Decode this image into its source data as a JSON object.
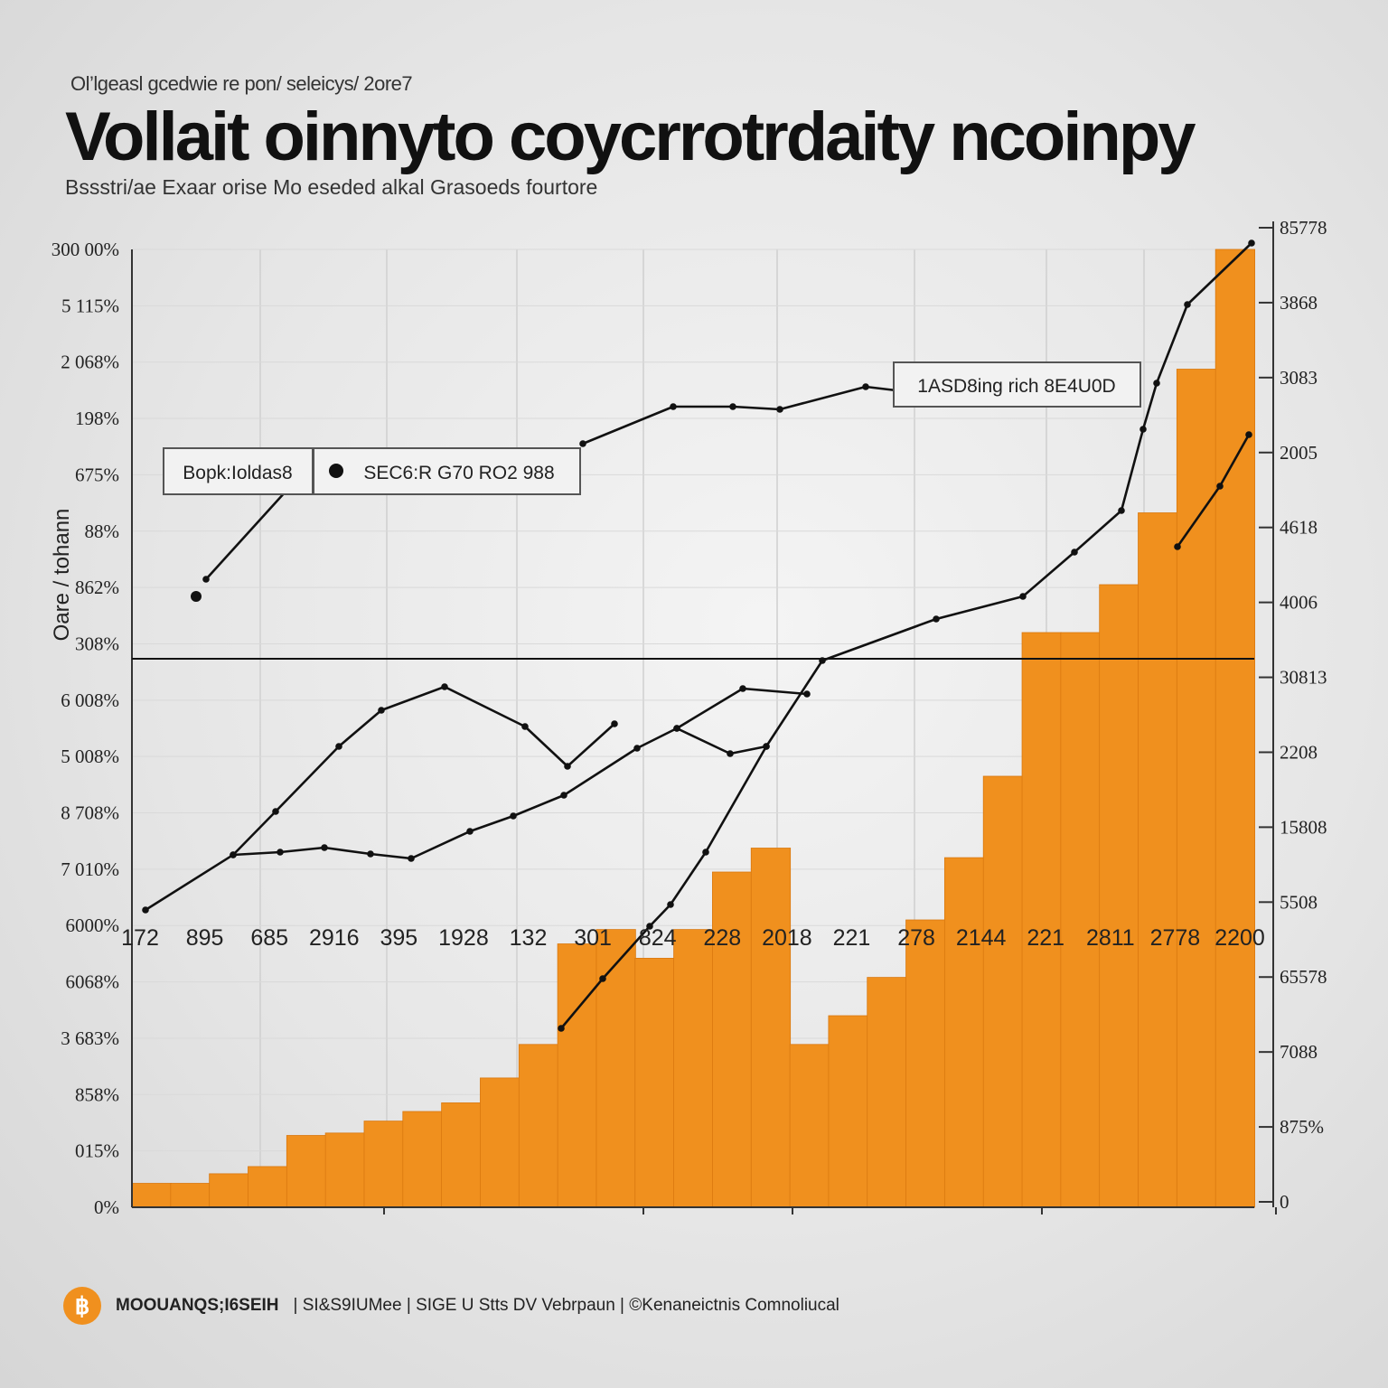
{
  "header": {
    "kicker": "Ol’lgeasl gcedwie re pon/ seleicys/ 2ore7",
    "title": "Vollait oinnyto coycrrotrdaity ncoinpy",
    "subtitle": "Bssstri/ae Exaar orise Mo eseded alkal Grasoeds fourtore"
  },
  "footer": {
    "icon": "bitcoin-icon",
    "brand": "MOOUANQS;I6SEIH",
    "text": "| SI&S9IUMee |  SIGE U Stts DV Vebrpaun |  ©Kenaneictnis Comnoliucal"
  },
  "colors": {
    "bar": "#f0901e",
    "bar_edge": "#d9780f",
    "line": "#111111"
  },
  "chart_data": {
    "type": "bar",
    "ylabel": "Oare / tohann",
    "grid": true,
    "y_left_ticks": [
      "300 00%",
      "5 115%",
      "2 068%",
      "198%",
      "675%",
      "88%",
      "862%",
      "308%",
      "6 008%",
      "5 008%",
      "8 708%",
      "7 010%",
      "6000%",
      "6068%",
      "3 683%",
      "858%",
      "015%",
      "0%"
    ],
    "y_right_ticks": [
      "85778",
      "3868",
      "3083",
      "2005",
      "4618",
      "4006",
      "30813",
      "2208",
      "15808",
      "5508",
      "65578",
      "7088",
      "875%",
      "0"
    ],
    "x_tick_labels": [
      "172",
      "895",
      "685",
      "2916",
      "395",
      "1928",
      "132",
      "301",
      "824",
      "228",
      "2018",
      "221",
      "278",
      "2144",
      "221",
      "2811",
      "2778",
      "2200"
    ],
    "x_tick_marks": [
      425,
      712,
      877,
      1153,
      1412
    ],
    "values": [
      0.5,
      0.5,
      0.7,
      0.85,
      1.5,
      1.55,
      1.8,
      2.0,
      2.18,
      2.7,
      3.4,
      5.5,
      5.8,
      5.2,
      5.8,
      7.0,
      7.5,
      3.4,
      4.0,
      4.8,
      6.0,
      7.3,
      9.0,
      12.0,
      12.0,
      13.0,
      14.5,
      17.5,
      20.0
    ],
    "ylim": [
      0,
      20
    ],
    "series": [
      {
        "points": [
          [
            161,
            1007
          ],
          [
            258,
            946
          ],
          [
            305,
            898
          ],
          [
            375,
            826
          ],
          [
            422,
            786
          ],
          [
            492,
            760
          ],
          [
            581,
            804
          ],
          [
            628,
            848
          ],
          [
            680,
            801
          ]
        ]
      },
      {
        "points": [
          [
            258,
            946
          ],
          [
            310,
            943
          ],
          [
            359,
            938
          ],
          [
            410,
            945
          ],
          [
            455,
            950
          ],
          [
            520,
            920
          ],
          [
            568,
            903
          ],
          [
            624,
            880
          ],
          [
            705,
            828
          ],
          [
            749,
            806
          ],
          [
            822,
            762
          ],
          [
            893,
            768
          ]
        ]
      },
      {
        "points": [
          [
            749,
            806
          ],
          [
            808,
            834
          ],
          [
            848,
            826
          ],
          [
            910,
            731
          ],
          [
            1036,
            685
          ],
          [
            1132,
            660
          ],
          [
            1189,
            611
          ],
          [
            1241,
            565
          ],
          [
            1265,
            475
          ],
          [
            1280,
            424
          ],
          [
            1314,
            337
          ],
          [
            1385,
            269
          ]
        ]
      },
      {
        "points": [
          [
            621,
            1138
          ],
          [
            667,
            1083
          ],
          [
            719,
            1025
          ],
          [
            742,
            1001
          ],
          [
            781,
            943
          ],
          [
            848,
            826
          ]
        ]
      },
      {
        "points": [
          [
            645,
            491
          ],
          [
            745,
            450
          ],
          [
            811,
            450
          ],
          [
            863,
            453
          ],
          [
            958,
            428
          ],
          [
            1000,
            433
          ]
        ]
      },
      {
        "points": [
          [
            1303,
            605
          ],
          [
            1350,
            538
          ],
          [
            1382,
            481
          ]
        ]
      },
      {
        "points": [
          [
            228,
            641
          ],
          [
            316,
            544
          ]
        ]
      }
    ],
    "annotations": [
      {
        "label": "Bopk:Ioldas8"
      },
      {
        "label": "SEC6:R G70 RO2 988"
      },
      {
        "label": "1ASD8ing rich 8E4U0D"
      }
    ]
  }
}
